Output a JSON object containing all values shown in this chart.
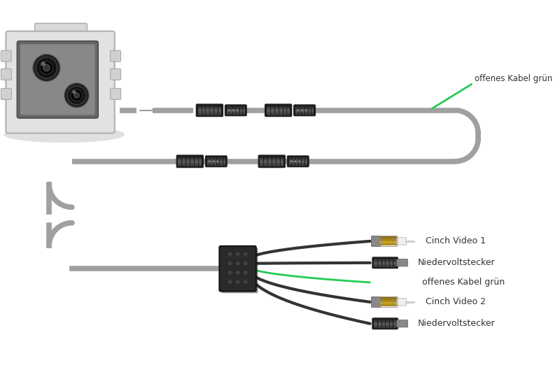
{
  "bg_color": "#ffffff",
  "cable_color": "#a0a0a0",
  "cable_dark": "#666666",
  "cable_light": "#d0d0d0",
  "green_color": "#22cc55",
  "yellow_color": "#f0c020",
  "text_color": "#333333",
  "labels": {
    "green_top": "offenes Kabel grün",
    "cinch1": "Cinch Video 1",
    "niedervolt1": "Niedervoltstecker",
    "green_bottom": "offenes Kabel grün",
    "cinch2": "Cinch Video 2",
    "niedervolt2": "Niedervoltstecker"
  },
  "figsize": [
    8.0,
    5.42
  ],
  "dpi": 100
}
